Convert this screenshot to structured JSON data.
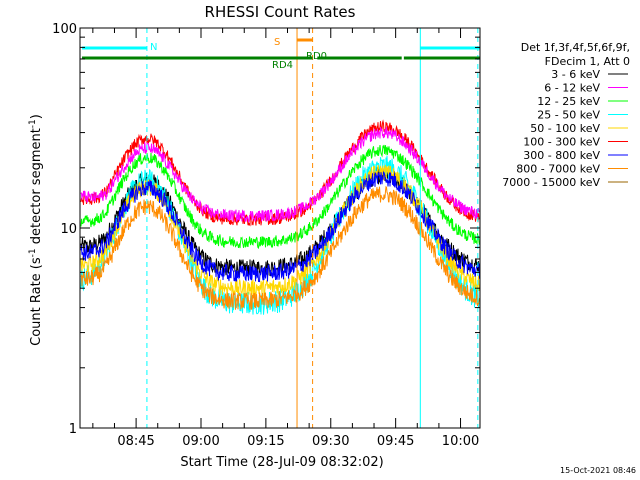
{
  "chart_data": {
    "type": "line",
    "title": "RHESSI Count Rates",
    "xlabel": "Start Time (28-Jul-09 08:32:02)",
    "ylabel_prefix": "Count Rate (s",
    "ylabel_sup1": "-1",
    "ylabel_mid": " detector segment",
    "ylabel_sup2": "-1",
    "ylabel_suffix": ")",
    "yscale": "log",
    "ylim": [
      1,
      100
    ],
    "y_ticks": [
      {
        "value": 1,
        "label": "1"
      },
      {
        "value": 10,
        "label": "10"
      },
      {
        "value": 100,
        "label": "100"
      }
    ],
    "x_ticks": [
      "08:45",
      "09:00",
      "09:15",
      "09:30",
      "09:45",
      "10:00"
    ],
    "x_tick_minutes": [
      45,
      60,
      75,
      90,
      105,
      120
    ],
    "x_range_minutes": [
      32.03,
      124.5
    ],
    "detectors_line1": "Det 1f,3f,4f,5f,6f,9f,",
    "detectors_line2": "FDecim 1, Att 0",
    "series": [
      {
        "name": "3 - 6 keV",
        "color": "#000000",
        "base": 6.3,
        "peak1": 11,
        "peak2": 12,
        "noise": 0.1
      },
      {
        "name": "6 - 12 keV",
        "color": "#ff00ff",
        "base": 11.5,
        "peak1": 13.5,
        "peak2": 18.5,
        "noise": 0.07
      },
      {
        "name": "12 - 25 keV",
        "color": "#00ff00",
        "base": 8.5,
        "peak1": 14,
        "peak2": 16,
        "noise": 0.07
      },
      {
        "name": "25 - 50 keV",
        "color": "#00ffff",
        "base": 4.2,
        "peak1": 13,
        "peak2": 16,
        "noise": 0.14
      },
      {
        "name": "50 - 100 keV",
        "color": "#ffd700",
        "base": 5.0,
        "peak1": 11,
        "peak2": 14,
        "noise": 0.1
      },
      {
        "name": "100 - 300 keV",
        "color": "#ff0000",
        "base": 11.0,
        "peak1": 17,
        "peak2": 21,
        "noise": 0.07
      },
      {
        "name": "300 - 800 keV",
        "color": "#0000ff",
        "base": 5.9,
        "peak1": 10,
        "peak2": 12,
        "noise": 0.1
      },
      {
        "name": "800 - 7000 keV",
        "color": "#ff8c00",
        "base": 4.3,
        "peak1": 8.5,
        "peak2": 10.5,
        "noise": 0.1
      },
      {
        "name": "7000 - 15000 keV",
        "color": "#996600",
        "base": null,
        "peak1": null,
        "peak2": null,
        "noise": 0
      }
    ],
    "peak_times_minutes": [
      47.5,
      102.0
    ],
    "orbit_flags": [
      {
        "label": "N",
        "color": "#00ffff",
        "start_min": 32.5,
        "end_min": 47.5
      },
      {
        "label": "N",
        "color": "#00ffff",
        "start_min": 110.7,
        "end_min": 124.5
      },
      {
        "label": "S",
        "color": "#ff8c00",
        "start_min": 82.2,
        "end_min": 85.8
      }
    ],
    "rd_flags": [
      {
        "label": "RD4",
        "color": "#008000",
        "start_min": 32.5,
        "end_min": 85.8
      },
      {
        "label": "RD0",
        "color": "#008000",
        "start_min": 86.9,
        "end_min": 106.4
      },
      {
        "label": "",
        "color": "#008000",
        "start_min": 106.9,
        "end_min": 124.5
      }
    ],
    "vertical_markers": [
      {
        "minute": 47.5,
        "color": "#00ffff",
        "style": "dashed"
      },
      {
        "minute": 82.2,
        "color": "#ff8c00",
        "style": "solid"
      },
      {
        "minute": 85.8,
        "color": "#ff8c00",
        "style": "dashed"
      },
      {
        "minute": 110.7,
        "color": "#00ffff",
        "style": "solid"
      },
      {
        "minute": 124.0,
        "color": "#00ffff",
        "style": "dashed"
      }
    ],
    "footer_date": "15-Oct-2021 08:46"
  }
}
